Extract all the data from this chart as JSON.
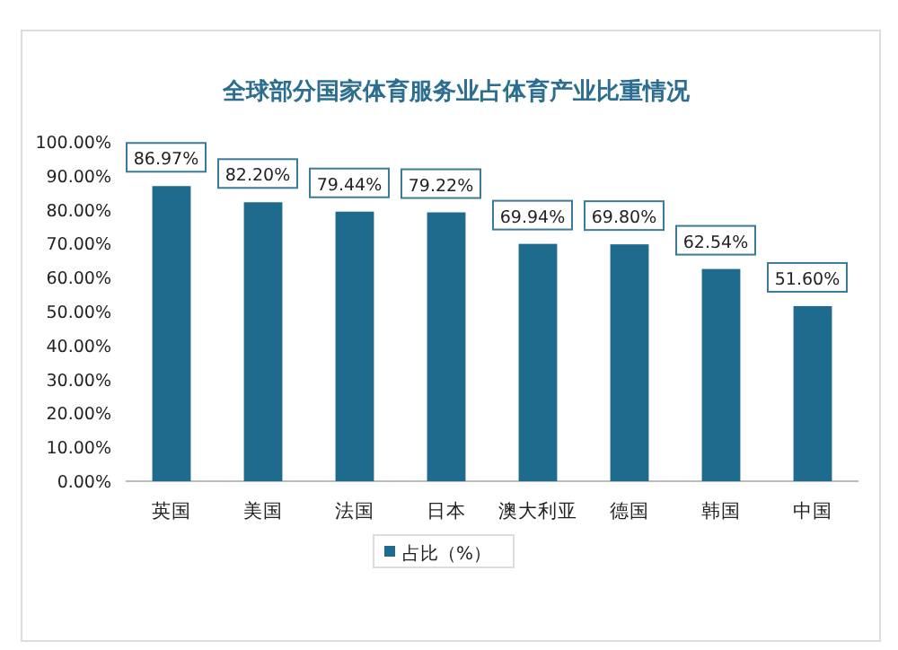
{
  "chart_data": {
    "type": "bar",
    "title": "全球部分国家体育服务业占体育产业比重情况",
    "categories": [
      "英国",
      "美国",
      "法国",
      "日本",
      "澳大利亚",
      "德国",
      "韩国",
      "中国"
    ],
    "series": [
      {
        "name": "占比（%）",
        "color": "#1f6b8e",
        "values": [
          86.97,
          82.2,
          79.44,
          79.22,
          69.94,
          69.8,
          62.54,
          51.6
        ],
        "value_labels": [
          "86.97%",
          "82.20%",
          "79.44%",
          "79.22%",
          "69.94%",
          "69.80%",
          "62.54%",
          "51.60%"
        ]
      }
    ],
    "ylim": [
      0,
      100
    ],
    "yticks": [
      {
        "value": 0,
        "label": "0.00%"
      },
      {
        "value": 10,
        "label": "10.00%"
      },
      {
        "value": 20,
        "label": "20.00%"
      },
      {
        "value": 30,
        "label": "30.00%"
      },
      {
        "value": 40,
        "label": "40.00%"
      },
      {
        "value": 50,
        "label": "50.00%"
      },
      {
        "value": 60,
        "label": "60.00%"
      },
      {
        "value": 70,
        "label": "70.00%"
      },
      {
        "value": 80,
        "label": "80.00%"
      },
      {
        "value": 90,
        "label": "90.00%"
      },
      {
        "value": 100,
        "label": "100.00%"
      }
    ],
    "legend": "bottom"
  }
}
